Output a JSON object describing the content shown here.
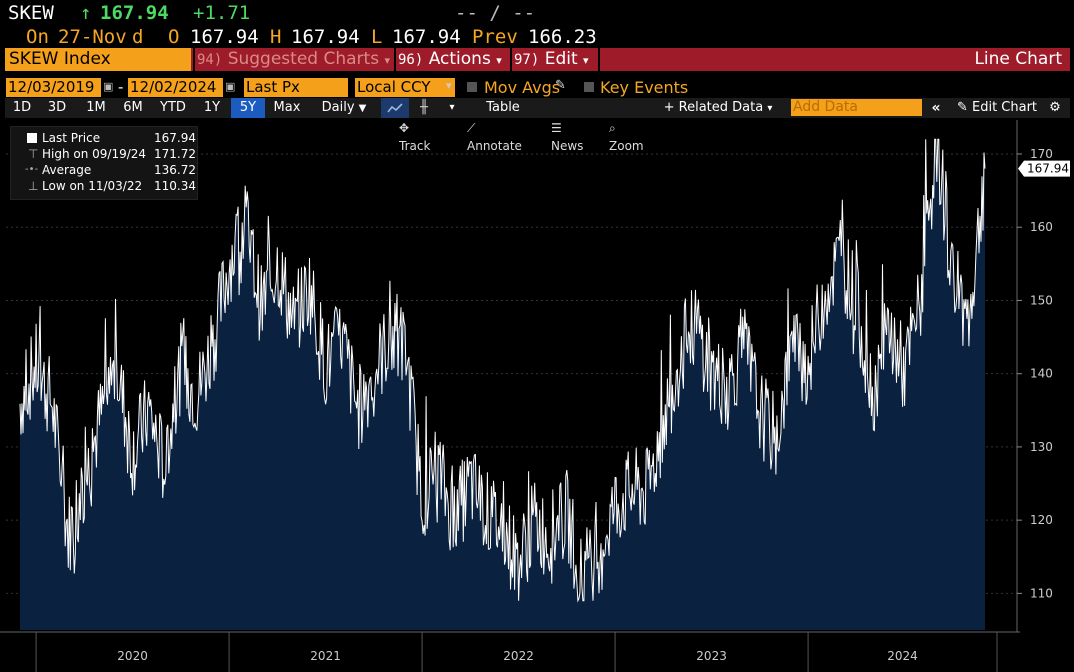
{
  "ticker": {
    "symbol": "SKEW",
    "arrow": "↑",
    "last": "167.94",
    "change": "+1.71",
    "dashes": "-- / --",
    "on_label": "On",
    "on_date": "27-Nov",
    "on_suffix": "d",
    "open_label": "O",
    "open": "167.94",
    "high_label": "H",
    "high": "167.94",
    "low_label": "L",
    "low": "167.94",
    "prev_label": "Prev",
    "prev": "166.23"
  },
  "title_bar": {
    "security": "SKEW Index",
    "suggested_num": "94)",
    "suggested": "Suggested Charts",
    "actions_num": "96)",
    "actions": "Actions",
    "edit_num": "97)",
    "edit": "Edit",
    "chart_type": "Line Chart"
  },
  "settings": {
    "start_date": "12/03/2019",
    "end_date": "12/02/2024",
    "dash": "-",
    "field": "Last Px",
    "currency": "Local CCY",
    "mov_avgs": "Mov Avgs",
    "key_events": "Key Events"
  },
  "toolbar": {
    "periods": [
      "1D",
      "3D",
      "1M",
      "6M",
      "YTD",
      "1Y",
      "5Y",
      "Max"
    ],
    "active_period": "5Y",
    "frequency": "Daily",
    "table": "Table",
    "related_data": "Related Data",
    "add_data_placeholder": "Add Data",
    "edit_chart": "Edit Chart"
  },
  "chart_tools": {
    "track": "Track",
    "annotate": "Annotate",
    "news": "News",
    "zoom": "Zoom"
  },
  "legend": {
    "last_price_label": "Last Price",
    "last_price": "167.94",
    "high_label": "High on 09/19/24",
    "high": "171.72",
    "average_label": "Average",
    "average": "136.72",
    "low_label": "Low on 11/03/22",
    "low": "110.34"
  },
  "colors": {
    "area_fill": "#0b2140",
    "line": "#ffffff",
    "amber": "#f5a623",
    "green": "#4cd964",
    "title_bar": "#9e1b2a",
    "active_tab": "#1c5bbf"
  },
  "chart_data": {
    "type": "area",
    "series": [
      {
        "name": "Last Price",
        "x": [
          "2019-12",
          "2020-01",
          "2020-02",
          "2020-03",
          "2020-04",
          "2020-05",
          "2020-06",
          "2020-07",
          "2020-08",
          "2020-09",
          "2020-10",
          "2020-11",
          "2020-12",
          "2021-01",
          "2021-02",
          "2021-03",
          "2021-04",
          "2021-05",
          "2021-06",
          "2021-07",
          "2021-08",
          "2021-09",
          "2021-10",
          "2021-11",
          "2021-12",
          "2022-01",
          "2022-02",
          "2022-03",
          "2022-04",
          "2022-05",
          "2022-06",
          "2022-07",
          "2022-08",
          "2022-09",
          "2022-10",
          "2022-11",
          "2022-12",
          "2023-01",
          "2023-02",
          "2023-03",
          "2023-04",
          "2023-05",
          "2023-06",
          "2023-07",
          "2023-08",
          "2023-09",
          "2023-10",
          "2023-11",
          "2023-12",
          "2024-01",
          "2024-02",
          "2024-03",
          "2024-04",
          "2024-05",
          "2024-06",
          "2024-07",
          "2024-08",
          "2024-09",
          "2024-10",
          "2024-11",
          "2024-12"
        ],
        "values": [
          136,
          141,
          136,
          118,
          125,
          134,
          141,
          129,
          135,
          127,
          141,
          137,
          144,
          155,
          161,
          149,
          155,
          147,
          152,
          141,
          145,
          135,
          140,
          145,
          143,
          123,
          127,
          120,
          125,
          121,
          119,
          114,
          120,
          117,
          121,
          111,
          116,
          122,
          124,
          124,
          133,
          142,
          147,
          140,
          138,
          144,
          135,
          131,
          144,
          141,
          151,
          156,
          150,
          137,
          146,
          140,
          150,
          172,
          153,
          147,
          168
        ]
      }
    ],
    "x_ticks": [
      "2020",
      "2021",
      "2022",
      "2023",
      "2024"
    ],
    "y_ticks": [
      110,
      120,
      130,
      140,
      150,
      160,
      170
    ],
    "ylim": [
      105,
      173
    ],
    "last_value_label": "167.94"
  }
}
